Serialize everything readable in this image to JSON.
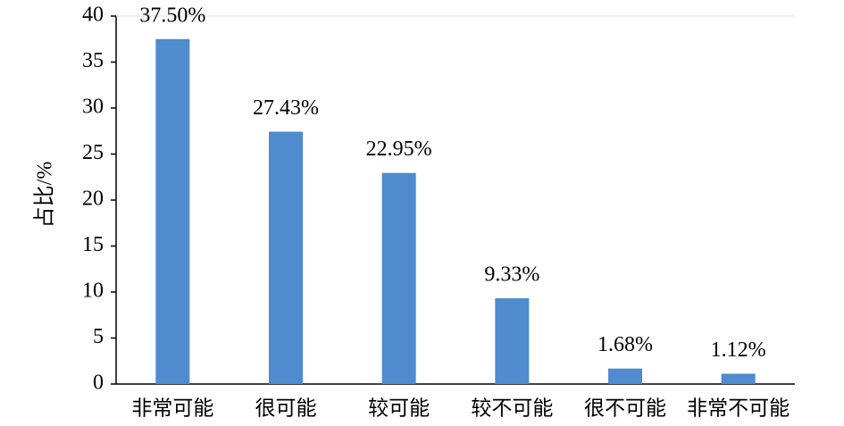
{
  "chart_data": {
    "type": "bar",
    "y_label": "占比/%",
    "categories": [
      "非常可能",
      "很可能",
      "较可能",
      "较不可能",
      "很不可能",
      "非常不可能"
    ],
    "values": [
      37.5,
      27.43,
      22.95,
      9.33,
      1.68,
      1.12
    ],
    "value_labels": [
      "37.50%",
      "27.43%",
      "22.95%",
      "9.33%",
      "1.68%",
      "1.12%"
    ],
    "color": "#4f8bce",
    "ylim": [
      0,
      40
    ],
    "yticks": [
      0,
      5,
      10,
      15,
      20,
      25,
      30,
      35,
      40
    ],
    "grid": false
  }
}
